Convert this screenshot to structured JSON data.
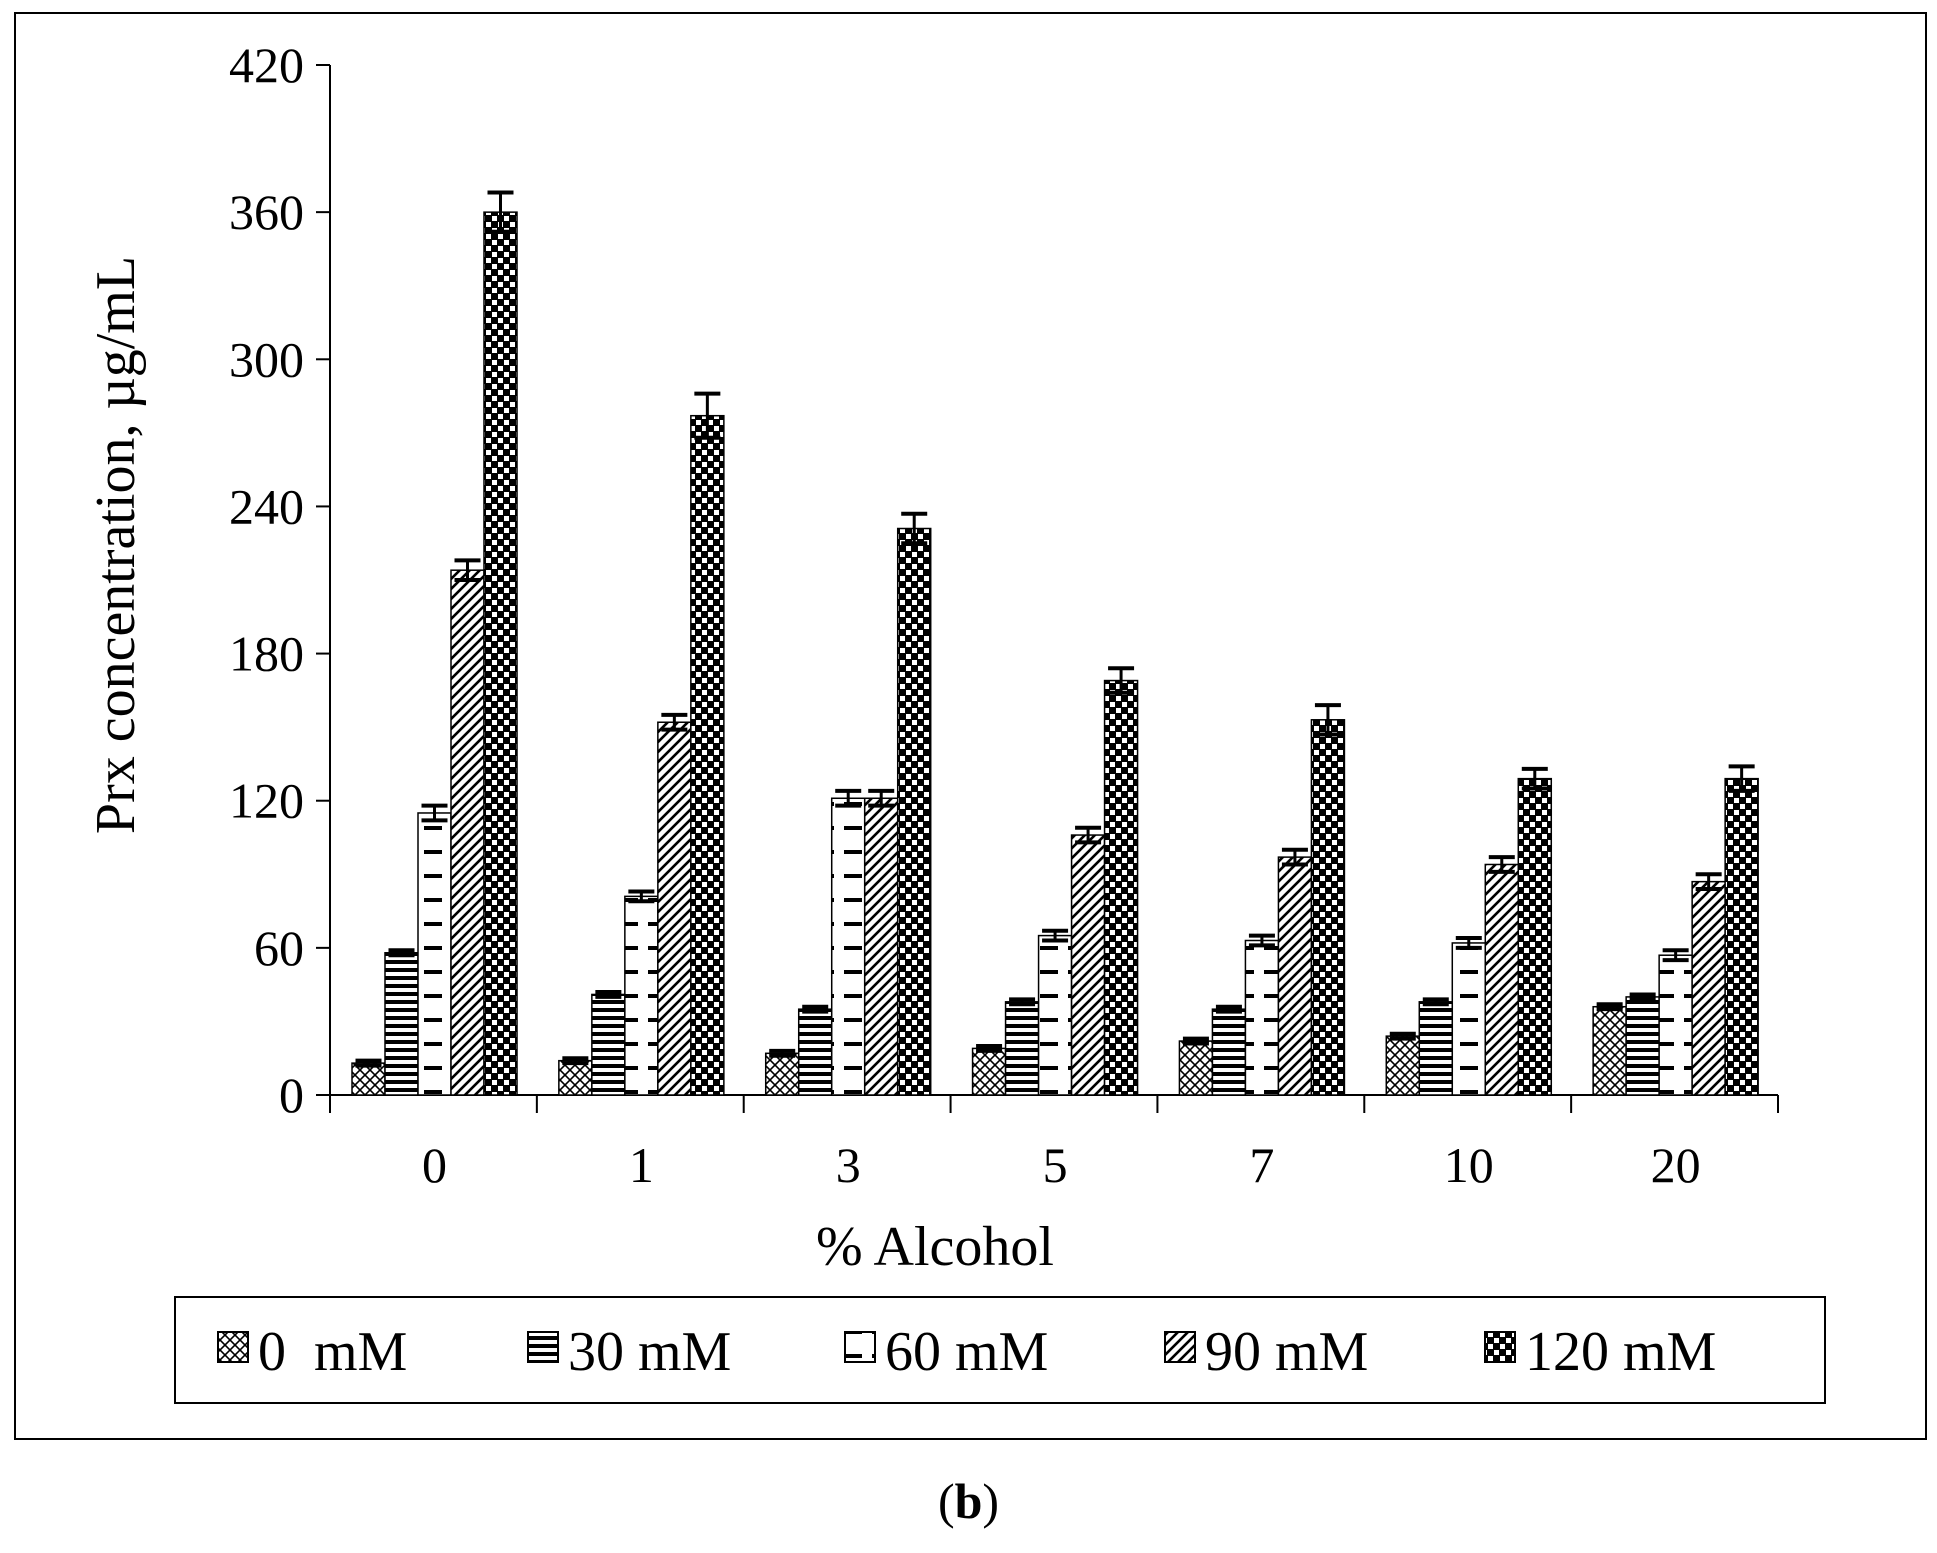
{
  "chart_data": {
    "type": "bar",
    "title": "",
    "xlabel": "% Alcohol",
    "ylabel": "Prx concentration, µg/mL",
    "categories": [
      "0",
      "1",
      "3",
      "5",
      "7",
      "10",
      "20"
    ],
    "ylim": [
      0,
      420
    ],
    "yticks": [
      0,
      60,
      120,
      180,
      240,
      300,
      360,
      420
    ],
    "grid": false,
    "legend_position": "bottom",
    "series": [
      {
        "name": "0  mM",
        "pattern": "diag-check",
        "values": [
          13,
          14,
          17,
          19,
          22,
          24,
          36
        ],
        "errors": [
          1,
          1,
          1,
          1,
          1,
          1,
          1
        ]
      },
      {
        "name": "30 mM",
        "pattern": "horizontal-lines",
        "values": [
          58,
          41,
          35,
          38,
          35,
          38,
          40
        ],
        "errors": [
          1,
          1,
          1,
          1,
          1,
          1,
          1
        ]
      },
      {
        "name": "60 mM",
        "pattern": "dashes",
        "values": [
          115,
          81,
          121,
          65,
          63,
          62,
          57
        ],
        "errors": [
          3,
          2,
          3,
          2,
          2,
          2,
          2
        ]
      },
      {
        "name": "90 mM",
        "pattern": "diagonal-stripes",
        "values": [
          214,
          152,
          121,
          106,
          97,
          94,
          87
        ],
        "errors": [
          4,
          3,
          3,
          3,
          3,
          3,
          3
        ]
      },
      {
        "name": "120 mM",
        "pattern": "checkerboard",
        "values": [
          360,
          277,
          231,
          169,
          153,
          129,
          129
        ],
        "errors": [
          8,
          9,
          6,
          5,
          6,
          4,
          5
        ]
      }
    ]
  },
  "caption": {
    "open": "(",
    "label": "b",
    "close": ")"
  }
}
